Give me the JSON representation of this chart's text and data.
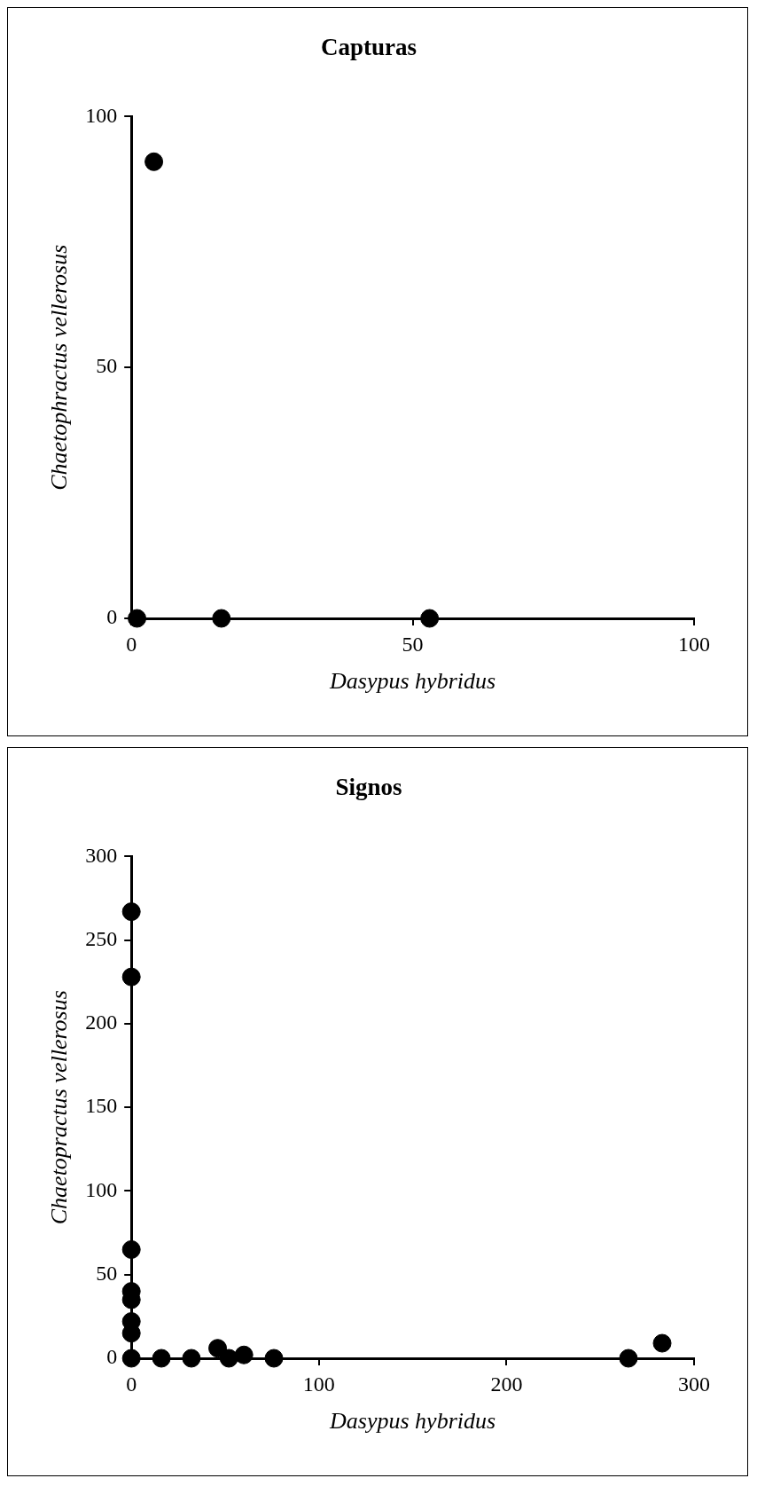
{
  "chart_data": [
    {
      "type": "scatter",
      "title": "Capturas",
      "xlabel": "Dasypus hybridus",
      "ylabel": "Chaetophractus vellerosus",
      "marker": "circle",
      "grid": false,
      "legend": false,
      "series": [
        {
          "color": "#000000",
          "x": [
            4,
            1,
            16,
            53
          ],
          "values": [
            91,
            0,
            0,
            0
          ]
        }
      ],
      "xlim": [
        0,
        100
      ],
      "xticks": [
        0,
        50,
        100
      ],
      "ylim": [
        0,
        100
      ],
      "yticks": [
        0,
        50,
        100
      ]
    },
    {
      "type": "scatter",
      "title": "Signos",
      "xlabel": "Dasypus hybridus",
      "ylabel": "Chaetopractus vellerosus",
      "marker": "circle",
      "grid": false,
      "legend": false,
      "series": [
        {
          "color": "#000000",
          "x": [
            0,
            0,
            0,
            0,
            0,
            0,
            0,
            0,
            16,
            32,
            46,
            52,
            60,
            76,
            265,
            283
          ],
          "values": [
            267,
            228,
            65,
            40,
            35,
            22,
            15,
            0,
            0,
            0,
            6,
            0,
            2,
            0,
            0,
            9
          ]
        }
      ],
      "xlim": [
        0,
        300
      ],
      "xticks": [
        0,
        100,
        200,
        300
      ],
      "ylim": [
        0,
        300
      ],
      "yticks": [
        0,
        50,
        100,
        150,
        200,
        250,
        300
      ]
    }
  ]
}
